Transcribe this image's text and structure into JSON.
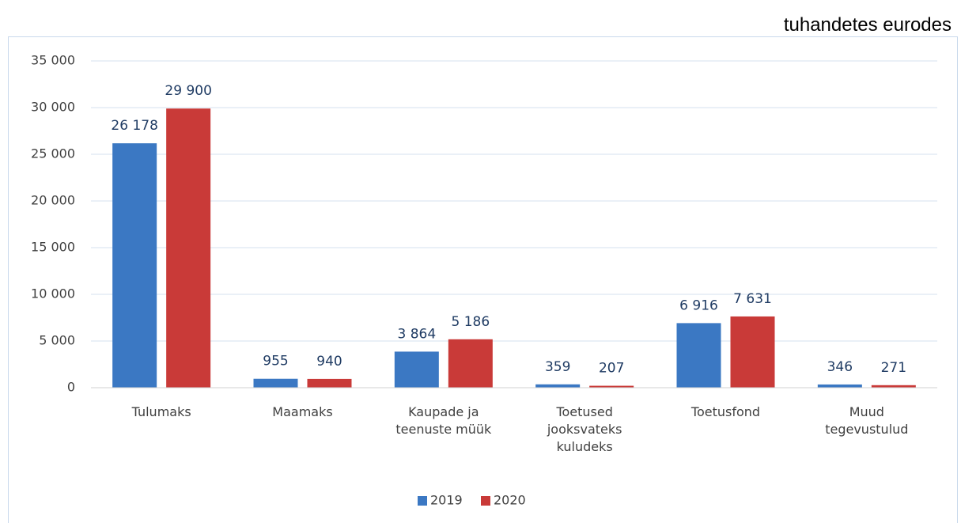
{
  "chart_data": {
    "type": "bar",
    "unit_label": "tuhandetes eurodes",
    "categories": [
      "Tulumaks",
      "Maamaks",
      "Kaupade ja teenuste müük",
      "Toetused jooksvateks kuludeks",
      "Toetusfond",
      "Muud tegevustulud"
    ],
    "series": [
      {
        "name": "2019",
        "color": "#3b78c3",
        "values": [
          26178,
          955,
          3864,
          359,
          6916,
          346
        ],
        "value_labels": [
          "26 178",
          "955",
          "3 864",
          "359",
          "6 916",
          "346"
        ]
      },
      {
        "name": "2020",
        "color": "#c93a38",
        "values": [
          29900,
          940,
          5186,
          207,
          7631,
          271
        ],
        "value_labels": [
          "29 900",
          "940",
          "5 186",
          "207",
          "7 631",
          "271"
        ]
      }
    ],
    "ylim": [
      0,
      35000
    ],
    "yticks": [
      0,
      {
        "value": 5000,
        "label": "5 000"
      },
      {
        "value": 10000,
        "label": "10 000"
      },
      {
        "value": 15000,
        "label": "15 000"
      },
      {
        "value": 20000,
        "label": "20 000"
      },
      {
        "value": 25000,
        "label": "25 000"
      },
      {
        "value": 30000,
        "label": "30 000"
      },
      {
        "value": 35000,
        "label": "35 000"
      }
    ],
    "grid": true,
    "legend": "bottom"
  }
}
